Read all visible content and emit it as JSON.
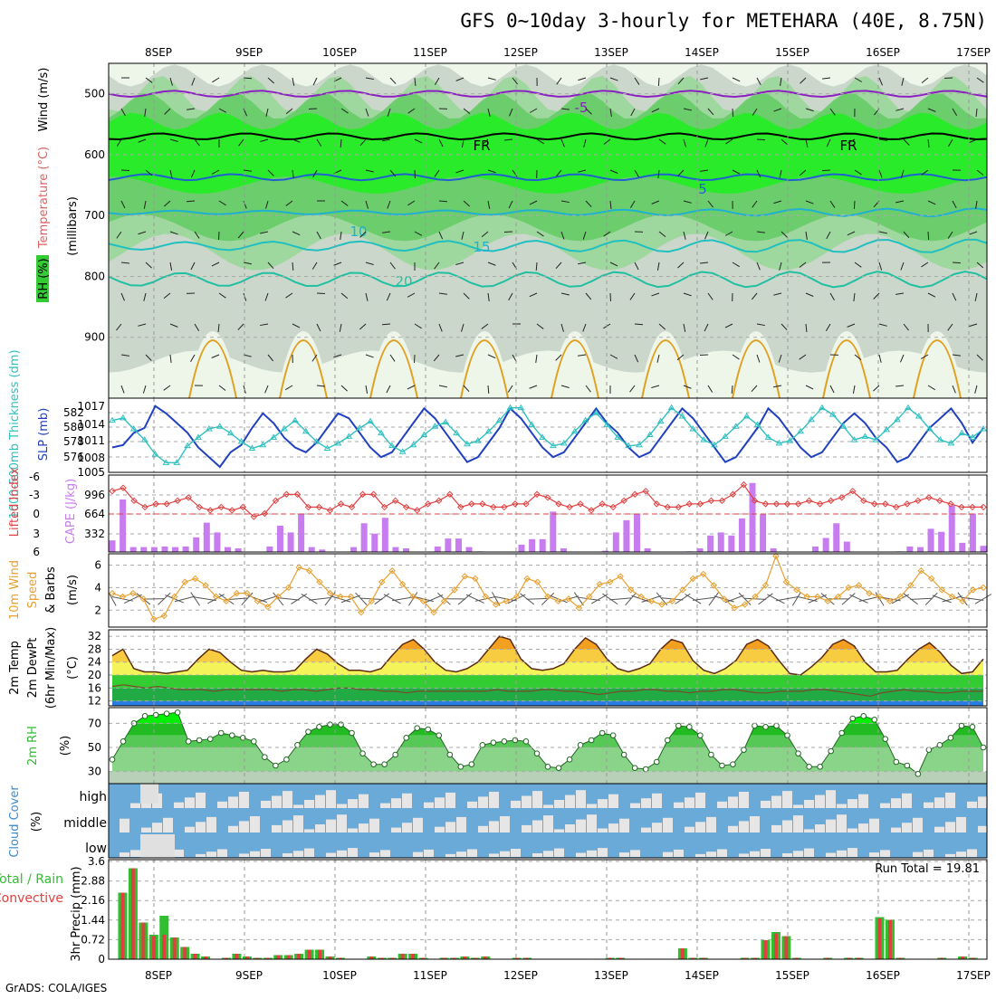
{
  "title": "GFS 0~10day 3-hourly for METEHARA (40E, 8.75N)",
  "credit": "GrADS: COLA/IGES",
  "colors": {
    "rh_green": "#33cc33",
    "cape_bar": "#c77cf0",
    "lifted_line": "#e04040",
    "sfc_pressure": "#2040c0",
    "thickness": "#30c0c0",
    "wind_speed": "#e8a030",
    "cloud_bg": "#6aaad8",
    "precip_total": "#2fbf2f",
    "precip_conv": "#e04040",
    "temp_purple": "#8a20c0",
    "temp_blue": "#2060d0",
    "temp_cyan": "#20b0d0",
    "temp_teal": "#20c0a0",
    "temp_orange": "#e0a020"
  },
  "chart_data": [
    {
      "panel": "pressure_cross_section",
      "type": "heatmap",
      "x": [
        "8SEP",
        "9SEP",
        "10SEP",
        "11SEP",
        "12SEP",
        "13SEP",
        "14SEP",
        "15SEP",
        "16SEP",
        "17SEP"
      ],
      "ylabel": "(millibars)",
      "yticks": [
        500,
        600,
        700,
        800,
        900
      ],
      "ylim": [
        1000,
        450
      ],
      "left_labels": {
        "wind": "Wind (m/s)",
        "temperature": "Temperature (°C)",
        "rh": "RH (%)"
      },
      "isotherm_labels": [
        "-5",
        "FR",
        "5",
        "10",
        "15",
        "20",
        "FR"
      ],
      "isotherms": [
        {
          "label": "-5",
          "level_mb": 500,
          "color": "#8a20c0"
        },
        {
          "label": "FR",
          "level_mb": 570,
          "color": "#000000"
        },
        {
          "label": "5",
          "level_mb": 637,
          "color": "#2060d0"
        },
        {
          "label": "10",
          "level_mb": 695,
          "color": "#20b0d0"
        },
        {
          "label": "15",
          "level_mb": 750,
          "color": "#20c0c0"
        },
        {
          "label": "20",
          "level_mb": 805,
          "color": "#20c0a0"
        }
      ]
    },
    {
      "panel": "thickness_slp",
      "type": "line",
      "ylabel_left": "1000-500mb Thickness (dm)",
      "ylabel_right": "SLP (mb)",
      "yticks_left": [
        "582",
        "580",
        "578",
        "576"
      ],
      "yticks_right": [
        "1017",
        "1014",
        "1011",
        "1008",
        "1005"
      ],
      "series": [
        {
          "name": "SLP",
          "values": [
            1008,
            1008.5,
            1011,
            1012,
            1016.5,
            1015,
            1013,
            1011,
            1008,
            1006,
            1004,
            1007,
            1008.5,
            1012,
            1015,
            1013,
            1010,
            1008,
            1007,
            1009,
            1012,
            1015,
            1014,
            1011,
            1008,
            1006,
            1007,
            1010,
            1013,
            1016,
            1014,
            1011,
            1008,
            1005,
            1006,
            1009,
            1012,
            1016,
            1014,
            1011,
            1008,
            1006,
            1007,
            1010,
            1013,
            1016,
            1013,
            1011,
            1008,
            1006,
            1007,
            1010,
            1013,
            1016,
            1014,
            1011,
            1008,
            1005,
            1006,
            1009,
            1012,
            1016,
            1014,
            1011,
            1008,
            1006,
            1007,
            1010,
            1013,
            1015,
            1013,
            1010,
            1008,
            1005,
            1006,
            1009,
            1012,
            1014,
            1016,
            1013,
            1009,
            1012
          ]
        },
        {
          "name": "Thickness",
          "values": [
            580.5,
            580.8,
            579.5,
            578.2,
            576.5,
            575.5,
            575.5,
            577.5,
            578.5,
            579.5,
            579.8,
            579,
            578,
            577.2,
            577.6,
            578.5,
            579.5,
            580.5,
            579.2,
            578,
            577.2,
            577.8,
            578.6,
            579.6,
            580.4,
            579,
            577.5,
            576.8,
            577.6,
            578.8,
            579.8,
            580.3,
            579,
            577.7,
            578.1,
            579.2,
            580.5,
            582,
            582,
            580,
            578.5,
            577.5,
            577.8,
            579.2,
            580.5,
            581.4,
            580,
            578.5,
            577.5,
            577.6,
            578.8,
            580.4,
            582,
            581,
            579.5,
            578.2,
            577.6,
            578.6,
            579.8,
            581,
            580,
            578.5,
            577.8,
            578.1,
            579.2,
            580.6,
            582,
            581.2,
            579.8,
            578.2,
            578.6,
            578.2,
            579.4,
            580.6,
            582,
            581,
            579.5,
            578.2,
            577.8,
            579,
            578.5,
            579.5
          ]
        }
      ]
    },
    {
      "panel": "cape_lifted_index",
      "type": "bar",
      "ylabel_left": "Lifted Index",
      "ylabel_right": "CAPE (J/kg)",
      "yticks_left": [
        "-6",
        "-3",
        "0",
        "3",
        "6"
      ],
      "yticks_right": [
        "996",
        "664",
        "332"
      ],
      "series": [
        {
          "name": "CAPE",
          "values": [
            190,
            860,
            80,
            80,
            80,
            90,
            80,
            90,
            240,
            480,
            320,
            80,
            60,
            0,
            0,
            90,
            430,
            320,
            630,
            80,
            40,
            0,
            0,
            80,
            470,
            300,
            560,
            80,
            60,
            0,
            0,
            90,
            220,
            220,
            80,
            10,
            0,
            0,
            0,
            120,
            210,
            210,
            660,
            60,
            0,
            0,
            0,
            20,
            320,
            520,
            620,
            60,
            0,
            0,
            0,
            10,
            60,
            270,
            320,
            270,
            550,
            1130,
            620,
            60,
            0,
            0,
            0,
            90,
            230,
            470,
            170,
            0,
            0,
            0,
            0,
            10,
            90,
            80,
            380,
            330,
            760,
            150,
            630,
            100
          ]
        },
        {
          "name": "Lifted Index",
          "values": [
            -3.5,
            -4,
            -2,
            -1,
            -1.5,
            -1.5,
            -2,
            -2.5,
            -1,
            -0.5,
            -1,
            -0.5,
            -1,
            0.5,
            0,
            -2,
            -3,
            -3,
            -1,
            -1,
            -0.5,
            -1.5,
            -1,
            -3,
            -3,
            -1,
            -2,
            -1,
            -0.5,
            -1.5,
            -2,
            -3,
            -1,
            -1.5,
            -1.5,
            -1,
            -1,
            -1.5,
            -1.5,
            -3,
            -2.5,
            -1.5,
            -1,
            -1.5,
            -0.5,
            -1.5,
            -1,
            -2,
            -3,
            -3.5,
            -1.5,
            -1,
            -1,
            -1.5,
            -1.5,
            -2,
            -2,
            -3,
            -4.5,
            -2,
            -1.5,
            -1.5,
            -1.5,
            -1.5,
            -2,
            -1.5,
            -2,
            -2.5,
            -3.5,
            -2,
            -1.5,
            -1.5,
            -1,
            -1.5,
            -2,
            -2.5,
            -2,
            -1.5,
            -1,
            -1,
            -1
          ]
        }
      ]
    },
    {
      "panel": "10m_wind",
      "type": "line",
      "ylabel": "10m Wind Speed & Barbs (m/s)",
      "ylabel_lines": [
        "10m Wind",
        "Speed",
        "& Barbs"
      ],
      "yunit": "(m/s)",
      "yticks": [
        "6",
        "4",
        "2"
      ],
      "ylim": [
        0.5,
        7
      ],
      "series": [
        {
          "name": "Speed",
          "values": [
            3.5,
            3.2,
            3.5,
            3,
            1.2,
            1.5,
            3.2,
            4.5,
            4.8,
            4.2,
            3.2,
            2.8,
            3.5,
            3.5,
            2.8,
            2.3,
            3.2,
            4,
            5.8,
            5.5,
            4.5,
            3.5,
            3.2,
            3.2,
            1.8,
            2.8,
            4.5,
            5.5,
            4.3,
            3.2,
            2.8,
            1.8,
            2.8,
            3.8,
            5,
            4.8,
            3.2,
            2.5,
            2.8,
            3.2,
            4.8,
            4.5,
            3.2,
            2.8,
            3,
            2.2,
            3.2,
            4.3,
            4.5,
            5,
            3.8,
            3.2,
            2.8,
            2.5,
            2.8,
            3.8,
            4.8,
            5.2,
            4.2,
            3,
            2.2,
            2.5,
            3.2,
            4.2,
            6.8,
            4.5,
            3.8,
            3.2,
            3.2,
            2.8,
            3.2,
            4,
            4.2,
            3.5,
            3.2,
            2.8,
            3.2,
            4.2,
            5.5,
            4.8,
            3.8,
            3.2,
            2.8,
            3.8,
            4
          ]
        }
      ]
    },
    {
      "panel": "2m_temp",
      "type": "area",
      "ylabel_lines": [
        "2m Temp",
        "2m DewPt",
        "(6hr Min/Max)"
      ],
      "yunit": "(°C)",
      "yticks": [
        "32",
        "28",
        "24",
        "20",
        "16",
        "12"
      ],
      "ylim": [
        10.5,
        34
      ],
      "series": [
        {
          "name": "2m Temp",
          "values": [
            26,
            28,
            22,
            21,
            21,
            20.5,
            21,
            21.5,
            25,
            28,
            27,
            24,
            21.5,
            21,
            21.5,
            21,
            21,
            21.5,
            25,
            28,
            26.5,
            23.5,
            21.5,
            21.5,
            21,
            22,
            26,
            29.5,
            31,
            28,
            24,
            21.5,
            21,
            22,
            24,
            28,
            32,
            31,
            25,
            22,
            21.5,
            22,
            23.5,
            28,
            31.5,
            29.5,
            25,
            22,
            21,
            22,
            23.5,
            28,
            31,
            30,
            24.5,
            21.5,
            20.5,
            22,
            24.5,
            29.5,
            31,
            29,
            24.5,
            20.5,
            20,
            22.5,
            25.5,
            29.5,
            31,
            29,
            24,
            21,
            21,
            21.5,
            25,
            28,
            30,
            27,
            23,
            20.5,
            21,
            25
          ]
        },
        {
          "name": "2m DewPt",
          "values": [
            16.5,
            17,
            16.5,
            16,
            16.5,
            16,
            15.5,
            15.5,
            15.5,
            15,
            15.5,
            15.5,
            15.5,
            15.5,
            15.5,
            15,
            15.5,
            15.5,
            15,
            15.5,
            16,
            16,
            15.5,
            15.5,
            15,
            15,
            14.5,
            15,
            15,
            15,
            15,
            15,
            15,
            15,
            15.5,
            15,
            15,
            15,
            15.5,
            15.5,
            15,
            15,
            14.5,
            14,
            14.5,
            15,
            15,
            15.5,
            15.5,
            15,
            15,
            14.5,
            15,
            15,
            15.5,
            15.5,
            15,
            14.5,
            14.5,
            15,
            15,
            15,
            15.5,
            15.5,
            15,
            14.5,
            14,
            13.5,
            14.5,
            15,
            15.5,
            15,
            15,
            14.5,
            14.5,
            15,
            15,
            15
          ]
        }
      ]
    },
    {
      "panel": "2m_rh",
      "type": "area",
      "ylabel": "2m RH",
      "yunit": "(%)",
      "yticks": [
        "70",
        "50",
        "30"
      ],
      "ylim": [
        20,
        83
      ],
      "series": [
        {
          "name": "2m RH",
          "values": [
            40,
            55,
            70,
            76,
            77,
            78,
            79,
            55,
            56,
            57,
            62,
            60,
            58,
            55,
            42,
            35,
            40,
            52,
            63,
            67,
            69,
            69,
            62,
            45,
            36,
            36,
            44,
            58,
            66,
            65,
            60,
            44,
            34,
            36,
            52,
            54,
            55,
            56,
            55,
            45,
            34,
            33,
            40,
            52,
            56,
            62,
            60,
            44,
            33,
            32,
            38,
            56,
            68,
            67,
            60,
            44,
            35,
            36,
            48,
            68,
            67,
            68,
            60,
            45,
            34,
            34,
            47,
            62,
            74,
            76,
            73,
            57,
            38,
            35,
            28,
            48,
            52,
            58,
            68,
            67,
            50
          ]
        }
      ]
    },
    {
      "panel": "cloud_cover",
      "type": "heatmap",
      "ylabel": "Cloud Cover (%)",
      "ylabel_word": "Cloud Cover",
      "yunit": "(%)",
      "rows": [
        "high",
        "middle",
        "low"
      ]
    },
    {
      "panel": "3hr_precip",
      "type": "bar",
      "ylabel": "3hr Precip (mm)",
      "legend_lines": [
        "Total / Rain",
        "Convective"
      ],
      "annotation": "Run Total = 19.81",
      "yticks": [
        "3.6",
        "2.88",
        "2.16",
        "1.44",
        "0.72",
        "0"
      ],
      "ylim": [
        0,
        3.6
      ],
      "series": [
        {
          "name": "Total",
          "values": [
            0,
            2.45,
            3.35,
            1.35,
            0.9,
            1.6,
            0.8,
            0.45,
            0.2,
            0.1,
            0,
            0.05,
            0.2,
            0.1,
            0.05,
            0.05,
            0.15,
            0.15,
            0.2,
            0.35,
            0.35,
            0.1,
            0.05,
            0,
            0,
            0.1,
            0.05,
            0.05,
            0.2,
            0.2,
            0.05,
            0,
            0.05,
            0.05,
            0.1,
            0.05,
            0.1,
            0,
            0,
            0.05,
            0.05,
            0,
            0,
            0,
            0,
            0,
            0,
            0,
            0.05,
            0.05,
            0,
            0,
            0,
            0,
            0,
            0.4,
            0.05,
            0.05,
            0,
            0,
            0,
            0.05,
            0.05,
            0.7,
            1.0,
            0.85,
            0.05,
            0,
            0,
            0.05,
            0,
            0.05,
            0.05,
            0,
            1.55,
            1.45,
            0.05,
            0,
            0,
            0,
            0.05,
            0,
            0.1,
            0.05,
            0
          ]
        },
        {
          "name": "Convective",
          "values": [
            0,
            2.45,
            3.35,
            1.35,
            0.85,
            0.9,
            0.8,
            0.45,
            0.2,
            0.1,
            0,
            0.05,
            0.2,
            0.1,
            0.05,
            0.05,
            0.15,
            0.15,
            0.2,
            0.35,
            0.35,
            0.1,
            0.05,
            0,
            0,
            0.1,
            0.05,
            0.05,
            0.2,
            0.2,
            0.05,
            0,
            0.05,
            0.05,
            0.1,
            0.05,
            0.1,
            0,
            0,
            0.05,
            0.05,
            0,
            0,
            0,
            0,
            0,
            0,
            0,
            0.05,
            0.05,
            0,
            0,
            0,
            0,
            0,
            0.4,
            0.05,
            0.05,
            0,
            0,
            0,
            0.05,
            0.05,
            0.7,
            0.95,
            0.85,
            0.05,
            0,
            0,
            0.05,
            0,
            0.05,
            0.05,
            0,
            1.5,
            1.45,
            0.05,
            0,
            0,
            0,
            0.05,
            0,
            0.1,
            0.05,
            0
          ]
        }
      ]
    }
  ]
}
